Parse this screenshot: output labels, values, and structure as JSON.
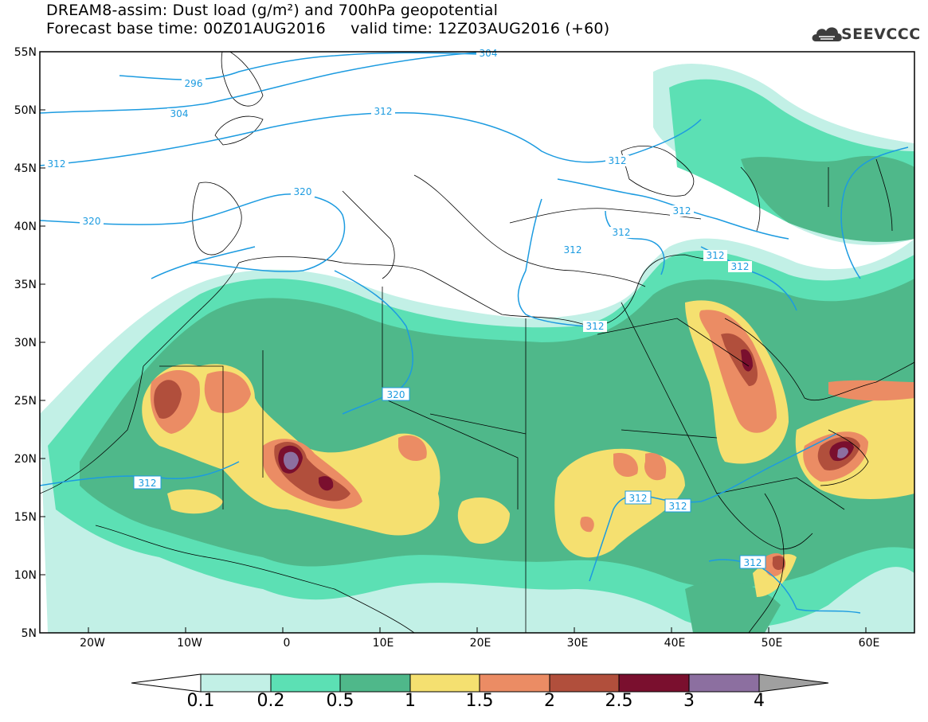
{
  "title": {
    "line1": "DREAM8-assim: Dust load (g/m²) and 700hPa geopotential",
    "line2": "Forecast base time: 00Z01AUG2016     valid time: 12Z03AUG2016 (+60)"
  },
  "logo": {
    "text": "SEEVCCC",
    "icon": "cloud-logo-icon"
  },
  "map": {
    "lon_range": [
      -25,
      65
    ],
    "lat_range": [
      5,
      55
    ],
    "lat_labels": [
      "55N",
      "50N",
      "45N",
      "40N",
      "35N",
      "30N",
      "25N",
      "20N",
      "15N",
      "10N",
      "5N"
    ],
    "lon_labels": [
      "20W",
      "10W",
      "0",
      "10E",
      "20E",
      "30E",
      "40E",
      "50E",
      "60E"
    ],
    "contour_labels": [
      "304",
      "296",
      "304",
      "312",
      "312",
      "320",
      "320",
      "320",
      "312",
      "312",
      "312",
      "312",
      "312",
      "312",
      "312",
      "312",
      "312",
      "312",
      "312"
    ]
  },
  "colorbar": {
    "labels": [
      "0.1",
      "0.2",
      "0.5",
      "1",
      "1.5",
      "2",
      "2.5",
      "3",
      "4"
    ],
    "colors": [
      "#c2f0e6",
      "#5ce0b4",
      "#4fb88a",
      "#f5e070",
      "#eb8c64",
      "#b14f3c",
      "#7a0f2e",
      "#8c6fa0",
      "#a0a0a0"
    ]
  },
  "chart_data": {
    "type": "heatmap",
    "variable": "Dust load (g/m²)",
    "contour_variable": "700hPa geopotential",
    "levels": [
      0.1,
      0.2,
      0.5,
      1,
      1.5,
      2,
      2.5,
      3,
      4
    ],
    "contour_values": [
      296,
      304,
      312,
      320
    ]
  }
}
